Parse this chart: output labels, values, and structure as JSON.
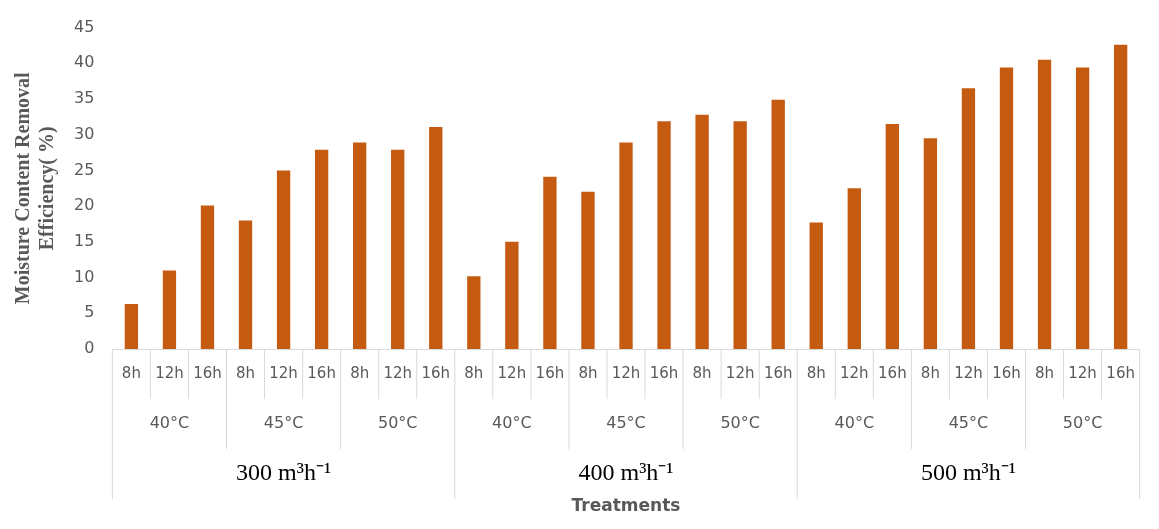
{
  "chart_data": {
    "type": "bar",
    "ylabel": "Moisture Content Removal Efficiency( %)",
    "categories": [
      "8h",
      "12h",
      "16h",
      "8h",
      "12h",
      "16h",
      "8h",
      "12h",
      "16h",
      "8h",
      "12h",
      "16h",
      "8h",
      "12h",
      "16h",
      "8h",
      "12h",
      "16h",
      "8h",
      "12h",
      "16h",
      "8h",
      "12h",
      "16h",
      "8h",
      "12h",
      "16h"
    ],
    "values": [
      6.3,
      11,
      20.1,
      18,
      25,
      27.9,
      28.9,
      27.9,
      31.1,
      10.2,
      15,
      24.1,
      22,
      28.9,
      31.9,
      32.8,
      31.9,
      34.9,
      17.7,
      22.5,
      31.5,
      29.5,
      36.5,
      39.4,
      40.5,
      39.4,
      42.6
    ],
    "color": "#c55a11",
    "ylim": [
      0,
      45
    ],
    "yticks": [
      0,
      5,
      10,
      15,
      20,
      25,
      30,
      35,
      40,
      45
    ],
    "grid": false,
    "annotations": [
      "40°C",
      "45°C",
      "50°C",
      "40°C",
      "45°C",
      "50°C",
      "40°C",
      "45°C",
      "50°C",
      "300 m³h⁻¹",
      "400 m³h⁻¹",
      "500 m³h⁻¹",
      "Treatments"
    ]
  }
}
